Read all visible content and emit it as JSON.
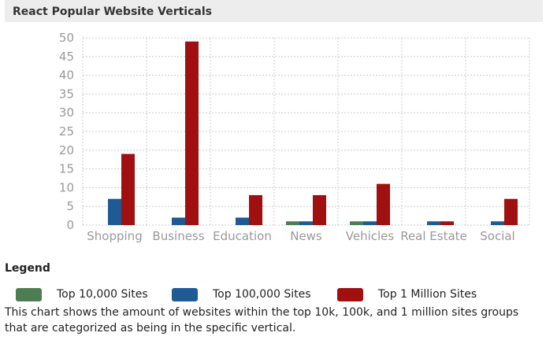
{
  "title": "React Popular Website Verticals",
  "legend": {
    "title": "Legend",
    "items": [
      {
        "label": "Top 10,000 Sites",
        "color": "#4e7d53"
      },
      {
        "label": "Top 100,000 Sites",
        "color": "#1f5a94"
      },
      {
        "label": "Top 1 Million Sites",
        "color": "#a01010"
      }
    ]
  },
  "description": "This chart shows the amount of websites within the top 10k, 100k, and 1 million sites groups that are categorized as being in the specific vertical.",
  "chart_data": {
    "type": "bar",
    "categories": [
      "Shopping",
      "Business",
      "Education",
      "News",
      "Vehicles",
      "Real Estate",
      "Social"
    ],
    "series": [
      {
        "name": "Top 10,000 Sites",
        "color": "#4e7d53",
        "values": [
          0,
          0,
          0,
          1,
          1,
          0,
          0
        ]
      },
      {
        "name": "Top 100,000 Sites",
        "color": "#1f5a94",
        "values": [
          7,
          2,
          2,
          1,
          1,
          1,
          1
        ]
      },
      {
        "name": "Top 1 Million Sites",
        "color": "#a01010",
        "values": [
          19,
          49,
          8,
          8,
          11,
          1,
          7
        ]
      }
    ],
    "yticks": [
      0,
      5,
      10,
      15,
      20,
      25,
      30,
      35,
      40,
      45,
      50
    ],
    "ylim": [
      0,
      50
    ],
    "grid": true
  }
}
